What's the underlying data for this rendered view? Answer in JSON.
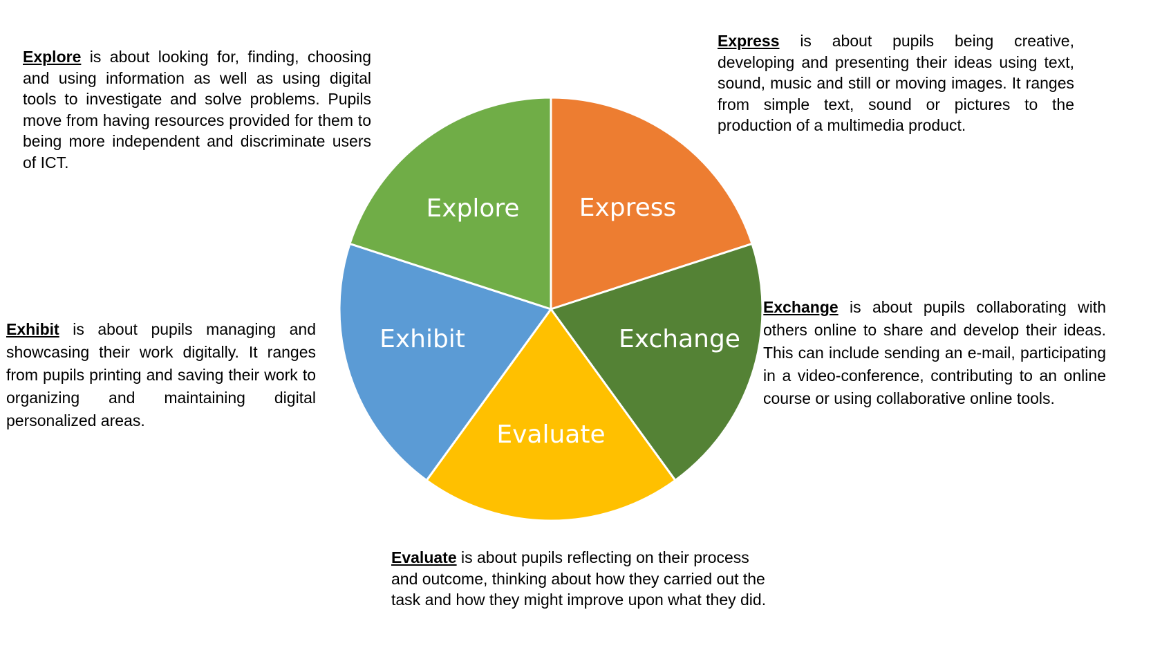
{
  "segments": [
    {
      "key": "express",
      "label": "Express",
      "color": "#ED7D31"
    },
    {
      "key": "exchange",
      "label": "Exchange",
      "color": "#548235"
    },
    {
      "key": "evaluate",
      "label": "Evaluate",
      "color": "#FFC000"
    },
    {
      "key": "exhibit",
      "label": "Exhibit",
      "color": "#5B9BD5"
    },
    {
      "key": "explore",
      "label": "Explore",
      "color": "#70AD47"
    }
  ],
  "descriptions": {
    "explore": {
      "term": "Explore",
      "text": " is about looking for, finding, choosing and using information as well as using digital tools to investigate and solve problems. Pupils move from having resources provided for them to being more independent and discriminate users of ICT."
    },
    "express": {
      "term": "Express",
      "text": " is about pupils being creative, developing and presenting their ideas using text, sound, music and still or moving images. It ranges from simple text, sound or pictures to the production of a multimedia product."
    },
    "exhibit": {
      "term": "Exhibit",
      "text": " is about pupils managing and showcasing their work digitally. It ranges from pupils printing and saving their work to organizing and maintaining digital personalized areas."
    },
    "exchange": {
      "term": "Exchange",
      "text": " is about pupils collaborating with others online to share and develop their ideas. This can include sending an e-mail, participating in a video-conference, contributing to an online course or using collaborative online tools."
    },
    "evaluate": {
      "term": "Evaluate",
      "text": " is about pupils reflecting on their process and outcome, thinking about how they carried out the task and how they might improve upon what they did."
    }
  }
}
